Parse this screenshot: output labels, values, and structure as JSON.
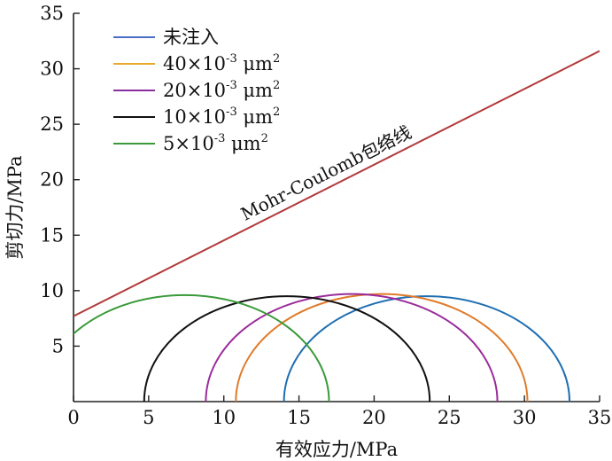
{
  "chart_data": {
    "type": "line",
    "title": "",
    "xlabel": "有效应力/MPa",
    "ylabel": "剪切力/MPa",
    "xlim": [
      0,
      35
    ],
    "ylim": [
      0,
      35
    ],
    "xticks": [
      0,
      5,
      10,
      15,
      20,
      25,
      30,
      35
    ],
    "yticks": [
      5,
      10,
      15,
      20,
      25,
      30,
      35
    ],
    "grid": false,
    "legend_position": "top-left",
    "series": [
      {
        "name": "未注入",
        "name_sup": "",
        "name_unit": "",
        "name_unit_sup": "",
        "shape": "mohr-circle",
        "center": 23.5,
        "radius": 9.5,
        "color": "#1f6fb2",
        "legend_color": "#4a6fc4"
      },
      {
        "name": "40×10",
        "name_sup": "-3",
        "name_unit": " μm",
        "name_unit_sup": "2",
        "shape": "mohr-circle",
        "center": 20.5,
        "radius": 9.7,
        "color": "#e07b2a",
        "legend_color": "#e8a92c"
      },
      {
        "name": "20×10",
        "name_sup": "-3",
        "name_unit": " μm",
        "name_unit_sup": "2",
        "shape": "mohr-circle",
        "center": 18.5,
        "radius": 9.7,
        "color": "#9b2b9b",
        "legend_color": "#8a2fa0"
      },
      {
        "name": "10×10",
        "name_sup": "-3",
        "name_unit": " μm",
        "name_unit_sup": "2",
        "shape": "mohr-circle",
        "center": 14.2,
        "radius": 9.5,
        "color": "#111111",
        "legend_color": "#111111"
      },
      {
        "name": "5×10",
        "name_sup": "-3",
        "name_unit": " μm",
        "name_unit_sup": "2",
        "shape": "mohr-circle",
        "center": 7.4,
        "radius": 9.6,
        "color": "#3a9a3a",
        "legend_color": "#3a9a3a"
      }
    ],
    "envelope": {
      "label": "Mohr-Coulomb包络线",
      "x": [
        0,
        35
      ],
      "y": [
        7.7,
        31.6
      ],
      "color": "#b23a3a"
    }
  }
}
